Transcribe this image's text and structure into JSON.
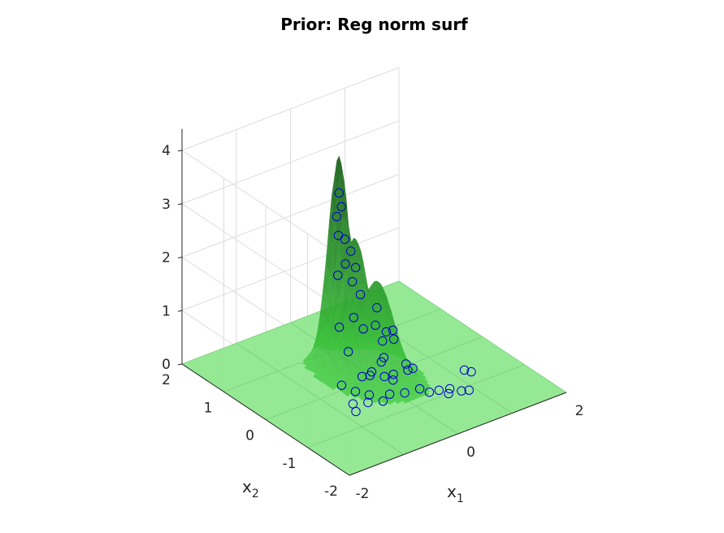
{
  "chart_data": {
    "type": "surface",
    "title": "Prior: Reg norm surf",
    "xlabel": "x",
    "xlabel_sub": "1",
    "ylabel": "x",
    "ylabel_sub": "2",
    "zlabel": "",
    "xlim": [
      -2,
      2
    ],
    "ylim": [
      -2,
      2
    ],
    "zlim": [
      0,
      4
    ],
    "x_ticks": [
      "-2",
      "0",
      "2"
    ],
    "y_ticks": [
      "-2",
      "-1",
      "0",
      "1",
      "2"
    ],
    "z_ticks": [
      "0",
      "1",
      "2",
      "3",
      "4"
    ],
    "grid": true,
    "surface_color": "#33b233",
    "floor_color": "#8fe88f",
    "marker_color": "#0000cc",
    "surface_peaks": [
      {
        "x": -0.3,
        "y": 0.45,
        "z": 4.05
      },
      {
        "x": -0.2,
        "y": 0.2,
        "z": 2.6
      },
      {
        "x": 0.05,
        "y": 0.0,
        "z": 1.8
      },
      {
        "x": 0.2,
        "y": -0.5,
        "z": 0.45
      }
    ],
    "scatter_points": [
      {
        "x": -0.3,
        "y": 0.45,
        "z": 3.35
      },
      {
        "x": -0.28,
        "y": 0.42,
        "z": 3.1
      },
      {
        "x": -0.32,
        "y": 0.48,
        "z": 2.9
      },
      {
        "x": -0.35,
        "y": 0.4,
        "z": 2.6
      },
      {
        "x": -0.25,
        "y": 0.38,
        "z": 2.5
      },
      {
        "x": -0.2,
        "y": 0.3,
        "z": 2.3
      },
      {
        "x": -0.3,
        "y": 0.3,
        "z": 2.1
      },
      {
        "x": -0.15,
        "y": 0.25,
        "z": 2.0
      },
      {
        "x": -0.25,
        "y": 0.2,
        "z": 1.8
      },
      {
        "x": -0.4,
        "y": 0.35,
        "z": 1.9
      },
      {
        "x": -0.1,
        "y": 0.2,
        "z": 1.5
      },
      {
        "x": 0.05,
        "y": 0.0,
        "z": 1.3
      },
      {
        "x": -0.3,
        "y": 0.1,
        "z": 1.2
      },
      {
        "x": -0.2,
        "y": 0.0,
        "z": 1.0
      },
      {
        "x": -0.45,
        "y": 0.25,
        "z": 1.0
      },
      {
        "x": 0.1,
        "y": 0.1,
        "z": 0.9
      },
      {
        "x": 0.0,
        "y": -0.2,
        "z": 0.8
      },
      {
        "x": 0.3,
        "y": 0.1,
        "z": 0.7
      },
      {
        "x": 0.5,
        "y": 0.2,
        "z": 0.6
      },
      {
        "x": 0.4,
        "y": 0.05,
        "z": 0.55
      },
      {
        "x": -0.4,
        "y": 0.1,
        "z": 0.6
      },
      {
        "x": -0.1,
        "y": -0.3,
        "z": 0.5
      },
      {
        "x": 0.2,
        "y": -0.5,
        "z": 0.45
      },
      {
        "x": 0.25,
        "y": -0.6,
        "z": 0.4
      },
      {
        "x": 0.1,
        "y": -0.1,
        "z": 0.4
      },
      {
        "x": -0.2,
        "y": -0.2,
        "z": 0.3
      },
      {
        "x": 0.35,
        "y": -0.35,
        "z": 0.2
      },
      {
        "x": 0.0,
        "y": -0.45,
        "z": 0.2
      },
      {
        "x": -0.3,
        "y": -0.1,
        "z": 0.2
      },
      {
        "x": -0.6,
        "y": 0.0,
        "z": 0.1
      },
      {
        "x": -0.5,
        "y": -0.2,
        "z": 0.05
      },
      {
        "x": -0.4,
        "y": -0.4,
        "z": 0.05
      },
      {
        "x": 0.2,
        "y": -0.2,
        "z": 0.1
      },
      {
        "x": 0.3,
        "y": -0.7,
        "z": 0.05
      },
      {
        "x": 0.5,
        "y": -0.9,
        "z": 0.05
      },
      {
        "x": 0.6,
        "y": -1.0,
        "z": 0.0
      },
      {
        "x": 0.7,
        "y": -0.9,
        "z": 0.0
      },
      {
        "x": 0.8,
        "y": -1.05,
        "z": 0.0
      },
      {
        "x": 0.9,
        "y": -1.1,
        "z": 0.0
      },
      {
        "x": 1.2,
        "y": -0.6,
        "z": 0.0
      },
      {
        "x": 1.25,
        "y": -0.7,
        "z": 0.0
      },
      {
        "x": 0.4,
        "y": -0.8,
        "z": 0.0
      },
      {
        "x": 0.1,
        "y": -0.6,
        "z": 0.0
      },
      {
        "x": -0.1,
        "y": -0.5,
        "z": 0.0
      },
      {
        "x": -0.3,
        "y": -0.6,
        "z": 0.0
      },
      {
        "x": -0.5,
        "y": -0.5,
        "z": 0.0
      },
      {
        "x": -0.7,
        "y": -0.4,
        "z": 0.0
      },
      {
        "x": -0.8,
        "y": -0.6,
        "z": 0.0
      },
      {
        "x": 0.0,
        "y": 0.1,
        "z": 0.0
      },
      {
        "x": 0.15,
        "y": -0.05,
        "z": 0.0
      }
    ]
  }
}
